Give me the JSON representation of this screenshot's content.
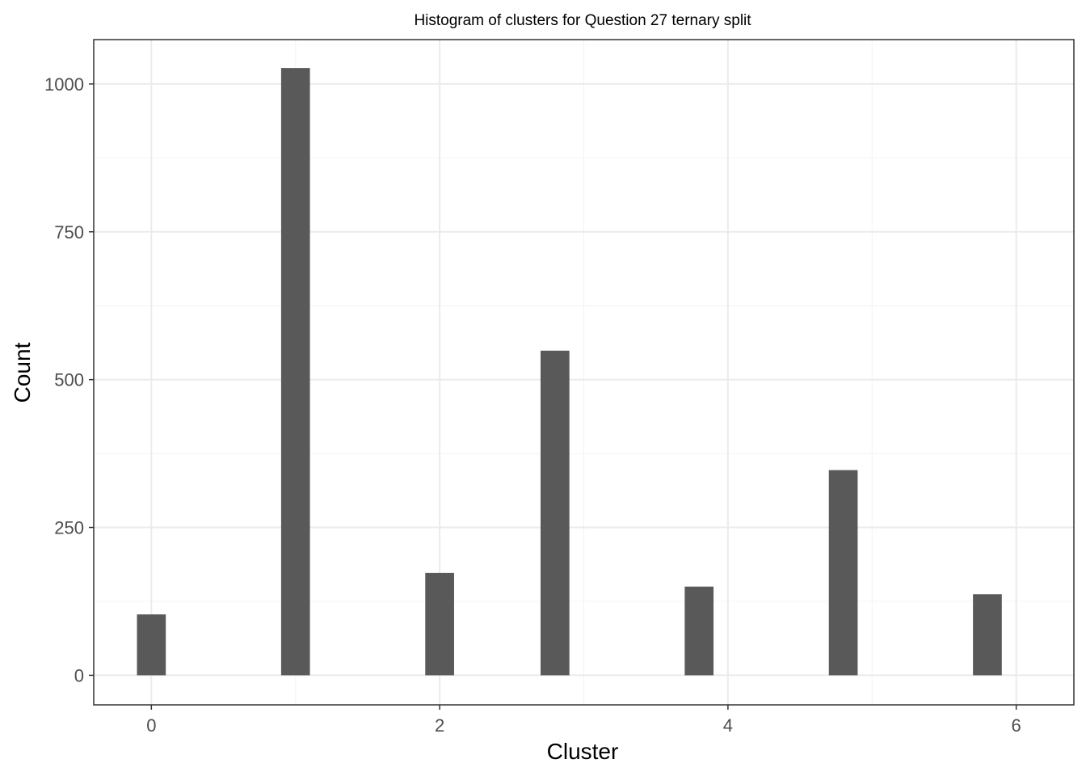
{
  "chart_data": {
    "type": "bar",
    "title": "Histogram of clusters for Question 27 ternary split",
    "xlabel": "Cluster",
    "ylabel": "Count",
    "x": [
      0,
      1,
      2,
      2.8,
      3.8,
      4.8,
      5.8
    ],
    "values": [
      103,
      1027,
      173,
      549,
      150,
      347,
      137
    ],
    "xlim": [
      -0.4,
      6.4
    ],
    "ylim": [
      -50,
      1075
    ],
    "xticks": [
      0,
      2,
      4,
      6
    ],
    "xtick_labels": [
      "0",
      "2",
      "4",
      "6"
    ],
    "yticks": [
      0,
      250,
      500,
      750,
      1000
    ],
    "ytick_labels": [
      "0",
      "250",
      "500",
      "750",
      "1000"
    ],
    "bar_color": "#595959",
    "grid": true,
    "grid_color": "#ebebeb",
    "legend": "none"
  }
}
